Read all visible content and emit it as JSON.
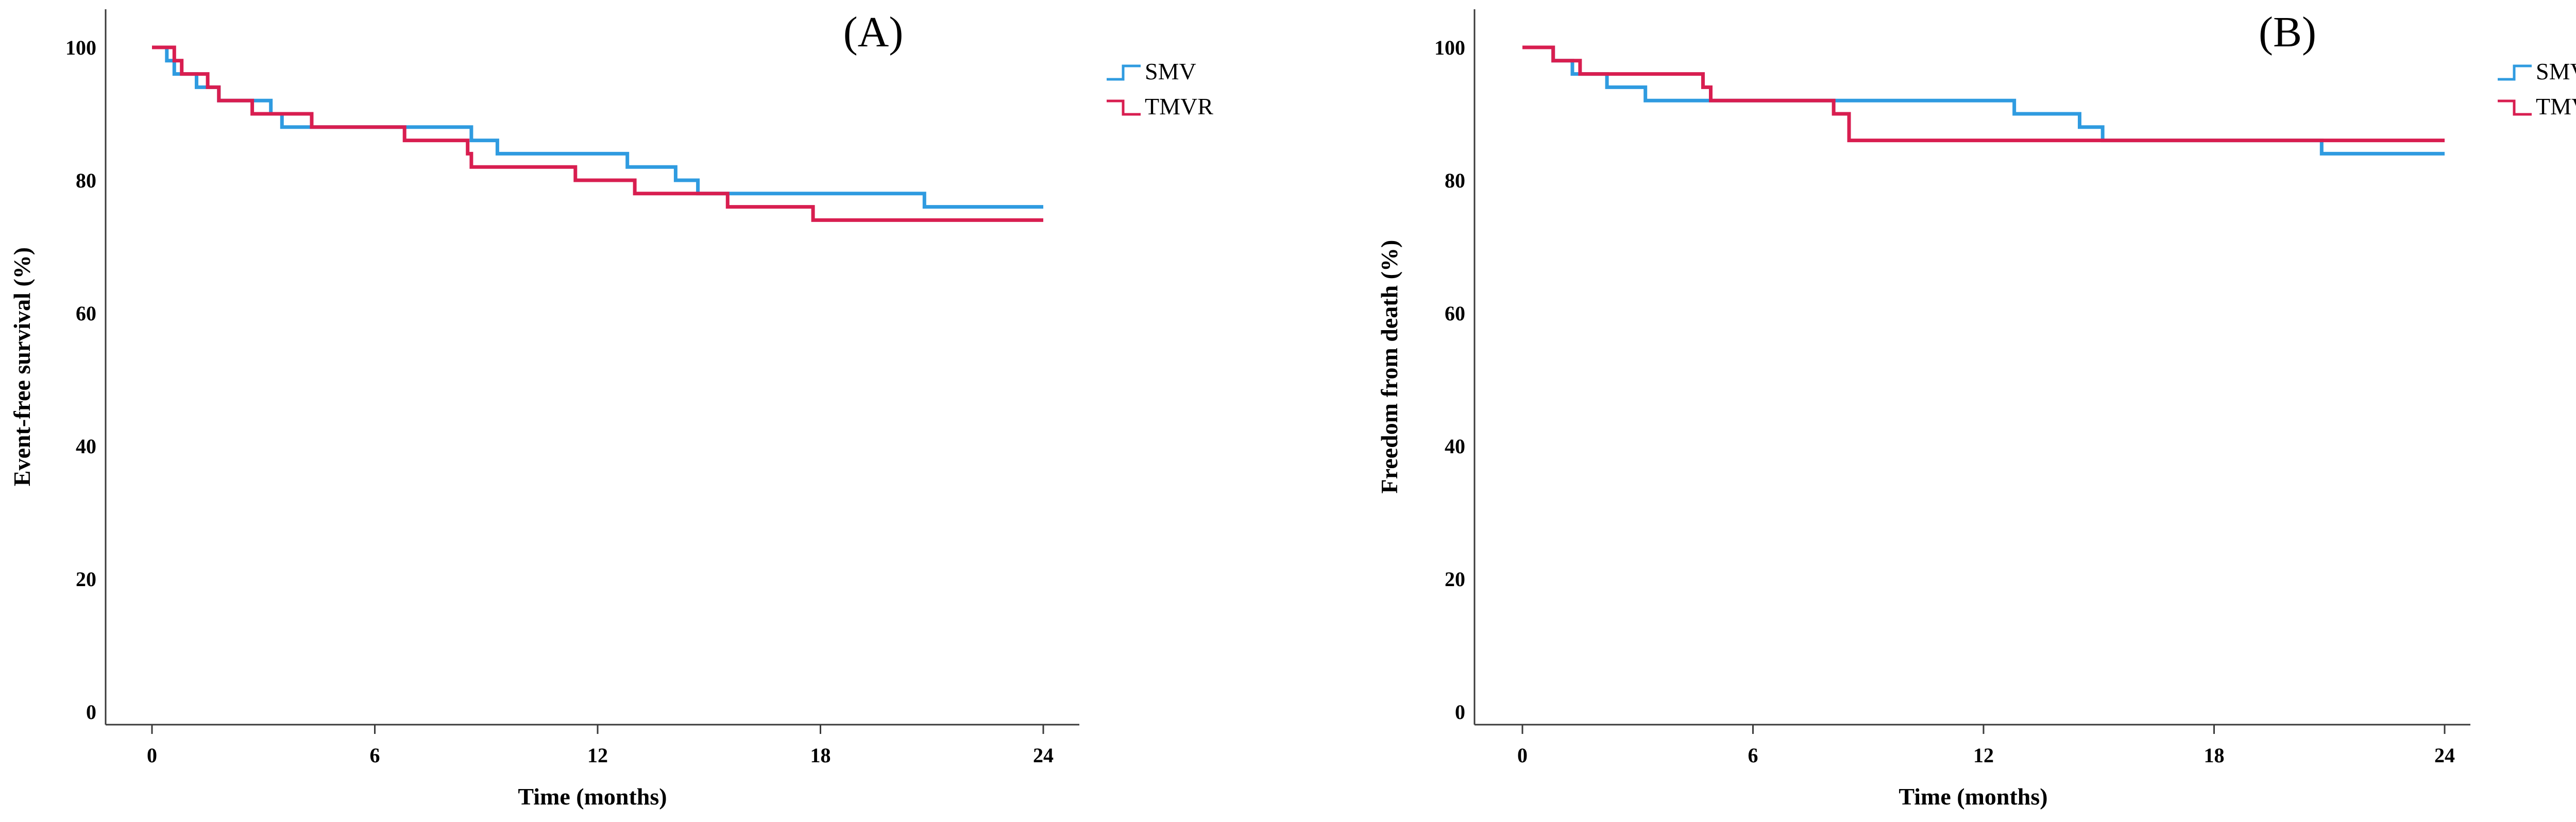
{
  "colors": {
    "SMV": "#2f9be0",
    "TMVR": "#d81e50"
  },
  "chart_data": [
    {
      "type": "line",
      "subtype": "kaplan-meier step",
      "panel_label": "(A)",
      "title": "",
      "xlabel": "Time (months)",
      "ylabel": "Event-free survival (%)",
      "xlim": [
        0,
        24
      ],
      "ylim": [
        0,
        100
      ],
      "xticks": [
        0,
        6,
        12,
        18,
        24
      ],
      "yticks": [
        0,
        20,
        40,
        60,
        80,
        100
      ],
      "xtick_labels": [
        "0",
        "6",
        "12",
        "18",
        "24"
      ],
      "ytick_labels": [
        "0",
        "20",
        "40",
        "60",
        "80",
        "100"
      ],
      "legend": [
        "SMV",
        "TMVR"
      ],
      "legend_position": "outside top-right",
      "grid": false,
      "series": [
        {
          "name": "SMV",
          "x": [
            0,
            0.4,
            0.6,
            1.2,
            1.8,
            3.2,
            3.5,
            8.6,
            9.3,
            12.8,
            14.1,
            14.7,
            20.8,
            24
          ],
          "y": [
            100,
            98,
            96,
            94,
            92,
            90,
            88,
            86,
            84,
            82,
            80,
            78,
            76,
            76
          ]
        },
        {
          "name": "TMVR",
          "x": [
            0,
            0.6,
            0.8,
            1.5,
            1.8,
            2.7,
            4.3,
            6.8,
            8.5,
            8.6,
            11.4,
            13.0,
            15.5,
            17.8,
            24
          ],
          "y": [
            100,
            98,
            96,
            94,
            92,
            90,
            88,
            86,
            84,
            82,
            80,
            78,
            76,
            74,
            74
          ]
        }
      ]
    },
    {
      "type": "line",
      "subtype": "kaplan-meier step",
      "panel_label": "(B)",
      "title": "",
      "xlabel": "Time (months)",
      "ylabel": "Freedom from death (%)",
      "xlim": [
        0,
        24
      ],
      "ylim": [
        0,
        100
      ],
      "xticks": [
        0,
        6,
        12,
        18,
        24
      ],
      "yticks": [
        0,
        20,
        40,
        60,
        80,
        100
      ],
      "xtick_labels": [
        "0",
        "6",
        "12",
        "18",
        "24"
      ],
      "ytick_labels": [
        "0",
        "20",
        "40",
        "60",
        "80",
        "100"
      ],
      "legend": [
        "SMV",
        "TMVR"
      ],
      "legend_position": "outside top-right",
      "grid": false,
      "series": [
        {
          "name": "SMV",
          "x": [
            0,
            0.8,
            1.3,
            2.2,
            3.2,
            12.8,
            14.5,
            15.1,
            20.8,
            24
          ],
          "y": [
            100,
            98,
            96,
            94,
            92,
            90,
            88,
            86,
            84,
            84
          ]
        },
        {
          "name": "TMVR",
          "x": [
            0,
            0.8,
            1.5,
            4.7,
            4.9,
            8.1,
            8.5,
            24
          ],
          "y": [
            100,
            98,
            96,
            94,
            92,
            90,
            86,
            86
          ]
        }
      ]
    }
  ]
}
